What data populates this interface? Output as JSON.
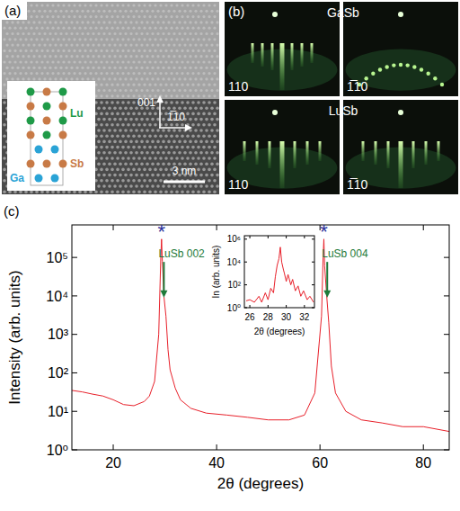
{
  "panel_a": {
    "panel_label": "(a)",
    "atoms": [
      "Lu",
      "Ga",
      "Sb"
    ],
    "directions": [
      "001",
      "1̅10"
    ],
    "scale_bar": "3 nm"
  },
  "panel_b": {
    "panel_label": "(b)",
    "rows": [
      "GaSb",
      "LuSb"
    ],
    "columns": [
      "110",
      "1̅10"
    ]
  },
  "chart_data": [
    {
      "type": "line",
      "panel_label": "(c)",
      "x_label": "2θ (degrees)",
      "y_label": "Intensity (arb. units)",
      "log": "y",
      "grid": false,
      "color": "#e8202a",
      "xlim": [
        12,
        85
      ],
      "xticks": [
        20,
        40,
        60,
        80
      ],
      "ylim": [
        1,
        700000
      ],
      "yticks": [
        {
          "value": 1,
          "label": "10⁰"
        },
        {
          "value": 10,
          "label": "10¹"
        },
        {
          "value": 100,
          "label": "10²"
        },
        {
          "value": 1000,
          "label": "10³"
        },
        {
          "value": 10000,
          "label": "10⁴"
        },
        {
          "value": 100000,
          "label": "10⁵"
        }
      ],
      "x": [
        12,
        14,
        16,
        18,
        20,
        22,
        24,
        26,
        27,
        28,
        28.8,
        29.2,
        29.35,
        29.5,
        29.8,
        30.2,
        30.6,
        31,
        32,
        33,
        35,
        38,
        42,
        46,
        50,
        54,
        57,
        59,
        60.3,
        60.6,
        60.75,
        60.9,
        61.3,
        61.7,
        62.2,
        63,
        65,
        68,
        72,
        76,
        80,
        85
      ],
      "values": [
        35,
        32,
        28,
        25,
        20,
        15,
        14,
        18,
        25,
        60,
        1000,
        100000,
        300000,
        80000,
        10000,
        3000,
        400,
        120,
        40,
        20,
        12,
        9,
        8,
        7,
        6,
        6,
        8,
        30,
        3000,
        100000,
        300000,
        60000,
        10000,
        2000,
        150,
        30,
        10,
        6,
        5,
        4,
        4,
        3
      ],
      "annotations": [
        {
          "text": "*",
          "x": 29.35,
          "y": 600000,
          "color": "#2b2f9a"
        },
        {
          "text": "*",
          "x": 60.75,
          "y": 600000,
          "color": "#2b2f9a"
        },
        {
          "text": "LuSb 002",
          "x": 29.8,
          "y": 100000,
          "arrow_to": [
            29.8,
            9000
          ],
          "color": "#1e7a3a"
        },
        {
          "text": "LuSb 004",
          "x": 61.4,
          "y": 100000,
          "arrow_to": [
            61.4,
            9000
          ],
          "color": "#1e7a3a"
        }
      ]
    },
    {
      "type": "line",
      "x_label": "2θ (degrees)",
      "y_label": "In (arb. units)",
      "log": "y",
      "grid": false,
      "color": "#e8202a",
      "xlim": [
        25.4,
        33.1
      ],
      "xticks": [
        26,
        28,
        30,
        32
      ],
      "ylim": [
        1,
        2000000
      ],
      "yticks": [
        {
          "value": 1,
          "label": "10⁰"
        },
        {
          "value": 100,
          "label": "10²"
        },
        {
          "value": 10000,
          "label": "10⁴"
        },
        {
          "value": 1000000,
          "label": "10⁶"
        }
      ],
      "x": [
        25.6,
        26,
        26.5,
        27,
        27.3,
        27.7,
        28,
        28.3,
        28.6,
        28.8,
        29,
        29.2,
        29.35,
        29.5,
        29.7,
        29.8,
        30,
        30.2,
        30.5,
        30.7,
        31,
        31.3,
        31.6,
        31.9,
        32.3,
        32.6,
        33
      ],
      "values": [
        4,
        5,
        3,
        10,
        3,
        20,
        5,
        50,
        20,
        500,
        5000,
        20000,
        200000,
        10000,
        2000,
        1000,
        200,
        800,
        100,
        300,
        30,
        80,
        10,
        30,
        5,
        10,
        3
      ]
    }
  ]
}
